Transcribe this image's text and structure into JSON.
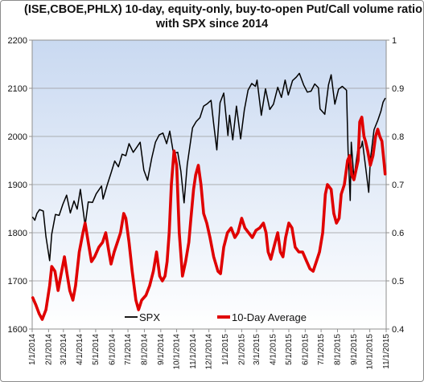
{
  "chart_data": {
    "type": "line",
    "title_line1": "(ISE,CBOE,PHLX) 10-day, equity-only, buy-to-open Put/Call volume ratio",
    "title_line2": "with SPX since 2014",
    "y_left": {
      "min": 1600,
      "max": 2200,
      "step": 100,
      "ticks": [
        "1600",
        "1700",
        "1800",
        "1900",
        "2000",
        "2100",
        "2200"
      ]
    },
    "y_right": {
      "min": 0.4,
      "max": 1.0,
      "step": 0.1,
      "ticks": [
        "0.4",
        "0.5",
        "0.6",
        "0.7",
        "0.8",
        "0.9",
        "1"
      ]
    },
    "x_range": [
      "2014-01-01",
      "2015-11-01"
    ],
    "x_ticks": [
      "1/1/2014",
      "2/1/2014",
      "3/1/2014",
      "4/1/2014",
      "5/1/2014",
      "6/1/2014",
      "7/1/2014",
      "8/1/2014",
      "9/1/2014",
      "10/1/2014",
      "11/1/2014",
      "12/1/2014",
      "1/1/2015",
      "2/1/2015",
      "3/1/2015",
      "4/1/2015",
      "5/1/2015",
      "6/1/2015",
      "7/1/2015",
      "8/1/2015",
      "9/1/2015",
      "10/1/2015",
      "11/1/2015"
    ],
    "grid": "horizontal",
    "legend_position": "bottom",
    "series": [
      {
        "name": "SPX",
        "axis": "left",
        "color": "#000000",
        "points": [
          [
            "2014-01-02",
            1832
          ],
          [
            "2014-01-06",
            1826
          ],
          [
            "2014-01-10",
            1840
          ],
          [
            "2014-01-15",
            1848
          ],
          [
            "2014-01-22",
            1845
          ],
          [
            "2014-01-27",
            1792
          ],
          [
            "2014-02-03",
            1742
          ],
          [
            "2014-02-07",
            1797
          ],
          [
            "2014-02-14",
            1838
          ],
          [
            "2014-02-21",
            1836
          ],
          [
            "2014-02-28",
            1859
          ],
          [
            "2014-03-07",
            1878
          ],
          [
            "2014-03-14",
            1841
          ],
          [
            "2014-03-21",
            1866
          ],
          [
            "2014-03-27",
            1849
          ],
          [
            "2014-04-02",
            1890
          ],
          [
            "2014-04-11",
            1815
          ],
          [
            "2014-04-17",
            1864
          ],
          [
            "2014-04-25",
            1863
          ],
          [
            "2014-05-02",
            1881
          ],
          [
            "2014-05-12",
            1897
          ],
          [
            "2014-05-15",
            1870
          ],
          [
            "2014-05-23",
            1900
          ],
          [
            "2014-05-30",
            1924
          ],
          [
            "2014-06-06",
            1949
          ],
          [
            "2014-06-13",
            1937
          ],
          [
            "2014-06-20",
            1963
          ],
          [
            "2014-06-27",
            1960
          ],
          [
            "2014-07-03",
            1985
          ],
          [
            "2014-07-11",
            1967
          ],
          [
            "2014-07-18",
            1978
          ],
          [
            "2014-07-24",
            1988
          ],
          [
            "2014-07-31",
            1930
          ],
          [
            "2014-08-07",
            1909
          ],
          [
            "2014-08-15",
            1955
          ],
          [
            "2014-08-22",
            1988
          ],
          [
            "2014-08-29",
            2003
          ],
          [
            "2014-09-05",
            2007
          ],
          [
            "2014-09-12",
            1985
          ],
          [
            "2014-09-18",
            2011
          ],
          [
            "2014-09-25",
            1965
          ],
          [
            "2014-10-03",
            1967
          ],
          [
            "2014-10-09",
            1928
          ],
          [
            "2014-10-15",
            1862
          ],
          [
            "2014-10-21",
            1941
          ],
          [
            "2014-10-31",
            2018
          ],
          [
            "2014-11-07",
            2031
          ],
          [
            "2014-11-14",
            2039
          ],
          [
            "2014-11-21",
            2063
          ],
          [
            "2014-11-28",
            2068
          ],
          [
            "2014-12-05",
            2075
          ],
          [
            "2014-12-10",
            2026
          ],
          [
            "2014-12-16",
            1972
          ],
          [
            "2014-12-22",
            2070
          ],
          [
            "2014-12-29",
            2090
          ],
          [
            "2015-01-06",
            2002
          ],
          [
            "2015-01-09",
            2044
          ],
          [
            "2015-01-15",
            1993
          ],
          [
            "2015-01-22",
            2063
          ],
          [
            "2015-01-30",
            1995
          ],
          [
            "2015-02-06",
            2055
          ],
          [
            "2015-02-13",
            2096
          ],
          [
            "2015-02-20",
            2110
          ],
          [
            "2015-02-27",
            2104
          ],
          [
            "2015-03-02",
            2117
          ],
          [
            "2015-03-10",
            2044
          ],
          [
            "2015-03-18",
            2099
          ],
          [
            "2015-03-26",
            2056
          ],
          [
            "2015-04-02",
            2067
          ],
          [
            "2015-04-10",
            2102
          ],
          [
            "2015-04-17",
            2081
          ],
          [
            "2015-04-24",
            2117
          ],
          [
            "2015-04-30",
            2086
          ],
          [
            "2015-05-08",
            2116
          ],
          [
            "2015-05-15",
            2123
          ],
          [
            "2015-05-21",
            2131
          ],
          [
            "2015-05-29",
            2107
          ],
          [
            "2015-06-05",
            2092
          ],
          [
            "2015-06-12",
            2094
          ],
          [
            "2015-06-19",
            2109
          ],
          [
            "2015-06-26",
            2101
          ],
          [
            "2015-06-29",
            2057
          ],
          [
            "2015-07-08",
            2046
          ],
          [
            "2015-07-15",
            2107
          ],
          [
            "2015-07-20",
            2128
          ],
          [
            "2015-07-27",
            2067
          ],
          [
            "2015-08-03",
            2098
          ],
          [
            "2015-08-10",
            2104
          ],
          [
            "2015-08-18",
            2096
          ],
          [
            "2015-08-21",
            1971
          ],
          [
            "2015-08-25",
            1867
          ],
          [
            "2015-08-27",
            1988
          ],
          [
            "2015-09-01",
            1913
          ],
          [
            "2015-09-08",
            1969
          ],
          [
            "2015-09-15",
            1979
          ],
          [
            "2015-09-17",
            1990
          ],
          [
            "2015-09-23",
            1938
          ],
          [
            "2015-09-29",
            1884
          ],
          [
            "2015-10-02",
            1951
          ],
          [
            "2015-10-09",
            2014
          ],
          [
            "2015-10-16",
            2033
          ],
          [
            "2015-10-22",
            2052
          ],
          [
            "2015-10-26",
            2071
          ],
          [
            "2015-10-30",
            2079
          ]
        ]
      },
      {
        "name": "10-Day Average",
        "axis": "right",
        "color": "#e00000",
        "points": [
          [
            "2014-01-02",
            0.465
          ],
          [
            "2014-01-08",
            0.45
          ],
          [
            "2014-01-14",
            0.432
          ],
          [
            "2014-01-20",
            0.42
          ],
          [
            "2014-01-27",
            0.44
          ],
          [
            "2014-02-03",
            0.49
          ],
          [
            "2014-02-07",
            0.53
          ],
          [
            "2014-02-13",
            0.52
          ],
          [
            "2014-02-19",
            0.48
          ],
          [
            "2014-02-24",
            0.51
          ],
          [
            "2014-03-03",
            0.55
          ],
          [
            "2014-03-07",
            0.52
          ],
          [
            "2014-03-13",
            0.48
          ],
          [
            "2014-03-19",
            0.46
          ],
          [
            "2014-03-24",
            0.49
          ],
          [
            "2014-03-31",
            0.56
          ],
          [
            "2014-04-07",
            0.6
          ],
          [
            "2014-04-11",
            0.62
          ],
          [
            "2014-04-17",
            0.58
          ],
          [
            "2014-04-23",
            0.54
          ],
          [
            "2014-04-29",
            0.55
          ],
          [
            "2014-05-07",
            0.57
          ],
          [
            "2014-05-14",
            0.58
          ],
          [
            "2014-05-20",
            0.6
          ],
          [
            "2014-05-26",
            0.56
          ],
          [
            "2014-05-30",
            0.535
          ],
          [
            "2014-06-05",
            0.56
          ],
          [
            "2014-06-11",
            0.58
          ],
          [
            "2014-06-17",
            0.6
          ],
          [
            "2014-06-23",
            0.64
          ],
          [
            "2014-06-27",
            0.63
          ],
          [
            "2014-07-03",
            0.58
          ],
          [
            "2014-07-09",
            0.52
          ],
          [
            "2014-07-16",
            0.46
          ],
          [
            "2014-07-21",
            0.44
          ],
          [
            "2014-07-27",
            0.46
          ],
          [
            "2014-08-04",
            0.47
          ],
          [
            "2014-08-11",
            0.49
          ],
          [
            "2014-08-18",
            0.52
          ],
          [
            "2014-08-24",
            0.56
          ],
          [
            "2014-08-30",
            0.51
          ],
          [
            "2014-09-04",
            0.5
          ],
          [
            "2014-09-09",
            0.51
          ],
          [
            "2014-09-13",
            0.54
          ],
          [
            "2014-09-17",
            0.6
          ],
          [
            "2014-09-21",
            0.7
          ],
          [
            "2014-09-26",
            0.77
          ],
          [
            "2014-10-01",
            0.74
          ],
          [
            "2014-10-06",
            0.6
          ],
          [
            "2014-10-12",
            0.51
          ],
          [
            "2014-10-18",
            0.54
          ],
          [
            "2014-10-24",
            0.58
          ],
          [
            "2014-10-28",
            0.63
          ],
          [
            "2014-11-02",
            0.69
          ],
          [
            "2014-11-06",
            0.72
          ],
          [
            "2014-11-11",
            0.74
          ],
          [
            "2014-11-16",
            0.7
          ],
          [
            "2014-11-21",
            0.64
          ],
          [
            "2014-11-27",
            0.62
          ],
          [
            "2014-12-03",
            0.59
          ],
          [
            "2014-12-10",
            0.55
          ],
          [
            "2014-12-18",
            0.52
          ],
          [
            "2014-12-23",
            0.515
          ],
          [
            "2014-12-29",
            0.57
          ],
          [
            "2015-01-05",
            0.6
          ],
          [
            "2015-01-12",
            0.61
          ],
          [
            "2015-01-19",
            0.59
          ],
          [
            "2015-01-25",
            0.6
          ],
          [
            "2015-02-01",
            0.63
          ],
          [
            "2015-02-07",
            0.61
          ],
          [
            "2015-02-14",
            0.6
          ],
          [
            "2015-02-21",
            0.59
          ],
          [
            "2015-02-28",
            0.605
          ],
          [
            "2015-03-07",
            0.61
          ],
          [
            "2015-03-14",
            0.62
          ],
          [
            "2015-03-19",
            0.6
          ],
          [
            "2015-03-23",
            0.56
          ],
          [
            "2015-03-28",
            0.545
          ],
          [
            "2015-04-04",
            0.575
          ],
          [
            "2015-04-10",
            0.6
          ],
          [
            "2015-04-15",
            0.56
          ],
          [
            "2015-04-20",
            0.55
          ],
          [
            "2015-04-25",
            0.59
          ],
          [
            "2015-05-01",
            0.62
          ],
          [
            "2015-05-07",
            0.61
          ],
          [
            "2015-05-13",
            0.57
          ],
          [
            "2015-05-20",
            0.56
          ],
          [
            "2015-05-27",
            0.56
          ],
          [
            "2015-06-04",
            0.54
          ],
          [
            "2015-06-10",
            0.525
          ],
          [
            "2015-06-16",
            0.52
          ],
          [
            "2015-06-22",
            0.54
          ],
          [
            "2015-06-28",
            0.56
          ],
          [
            "2015-07-04",
            0.6
          ],
          [
            "2015-07-09",
            0.68
          ],
          [
            "2015-07-13",
            0.7
          ],
          [
            "2015-07-20",
            0.69
          ],
          [
            "2015-07-25",
            0.64
          ],
          [
            "2015-07-30",
            0.62
          ],
          [
            "2015-08-04",
            0.63
          ],
          [
            "2015-08-08",
            0.68
          ],
          [
            "2015-08-14",
            0.7
          ],
          [
            "2015-08-20",
            0.75
          ],
          [
            "2015-08-24",
            0.76
          ],
          [
            "2015-08-28",
            0.72
          ],
          [
            "2015-09-01",
            0.71
          ],
          [
            "2015-09-05",
            0.73
          ],
          [
            "2015-09-09",
            0.75
          ],
          [
            "2015-09-12",
            0.83
          ],
          [
            "2015-09-16",
            0.84
          ],
          [
            "2015-09-20",
            0.8
          ],
          [
            "2015-09-23",
            0.79
          ],
          [
            "2015-09-27",
            0.77
          ],
          [
            "2015-10-02",
            0.74
          ],
          [
            "2015-10-07",
            0.76
          ],
          [
            "2015-10-12",
            0.8
          ],
          [
            "2015-10-16",
            0.815
          ],
          [
            "2015-10-20",
            0.8
          ],
          [
            "2015-10-24",
            0.79
          ],
          [
            "2015-10-28",
            0.745
          ],
          [
            "2015-10-30",
            0.722
          ]
        ]
      }
    ]
  }
}
